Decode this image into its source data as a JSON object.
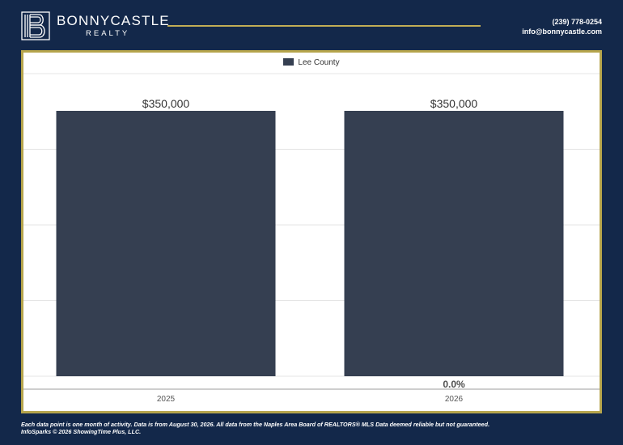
{
  "header": {
    "brand_name": "BONNYCASTLE",
    "brand_sub": "REALTY",
    "phone": "(239) 778-0254",
    "email": "info@bonnycastle.com"
  },
  "colors": {
    "background": "#13284a",
    "accent": "#c2ad55",
    "bar": "#353f51"
  },
  "chart_data": {
    "type": "bar",
    "categories": [
      "2025",
      "2026"
    ],
    "series": [
      {
        "name": "Lee County",
        "values": [
          350000,
          350000
        ]
      }
    ],
    "value_labels": [
      "$350,000",
      "$350,000"
    ],
    "change_label": "0.0%",
    "ylim": [
      0,
      350000
    ],
    "grid": true,
    "legend": "top-center",
    "title": "",
    "xlabel": "",
    "ylabel": ""
  },
  "footer": {
    "line1": "Each data point is one month of activity. Data is from August 30, 2026. All data from the Naples Area Board of REALTORS® MLS  Data deemed reliable but not guaranteed.",
    "line2": "InfoSparks © 2026 ShowingTime Plus, LLC."
  }
}
